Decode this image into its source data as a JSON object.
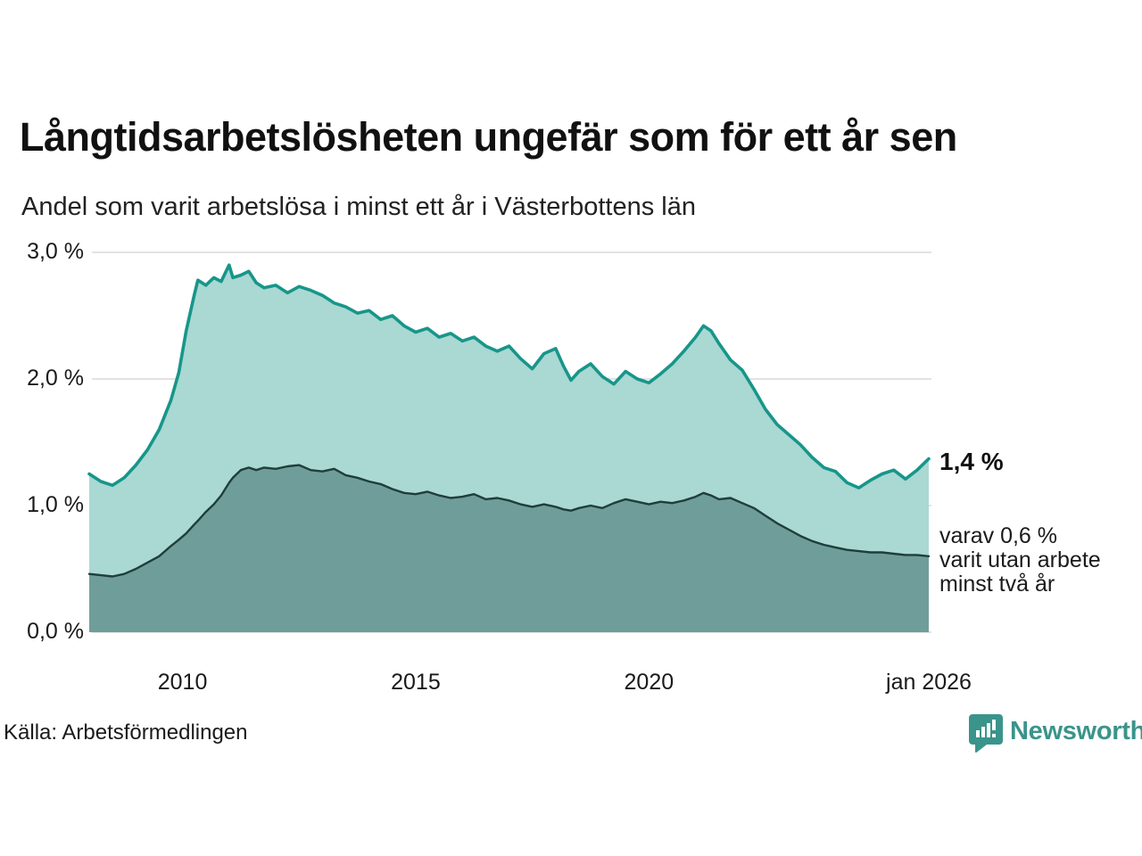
{
  "header": {
    "title": "Långtidsarbetslösheten ungefär som för ett år sen",
    "subtitle": "Andel som varit arbetslösa i minst ett år i Västerbottens län"
  },
  "annotations": {
    "latest_total": "1,4 %",
    "secondary_lines": [
      "varav 0,6 %",
      "varit utan arbete",
      "minst två år"
    ]
  },
  "footer": {
    "source": "Källa: Arbetsförmedlingen",
    "brand": "Newsworthy",
    "brand_icon": "newsworthy-bubble-chart-icon"
  },
  "colors": {
    "one_year_line": "#17968a",
    "one_year_fill": "#aad8d2",
    "two_year_line": "#1e3e3c",
    "two_year_fill": "#6f9e9a",
    "gridline": "#d8d8d8",
    "text": "#1a1a1a",
    "brand_teal": "#3a948b"
  },
  "chart_data": {
    "type": "area",
    "title": "Långtidsarbetslösheten ungefär som för ett år sen",
    "subtitle": "Andel som varit arbetslösa i minst ett år i Västerbottens län",
    "xlabel": "",
    "ylabel": "",
    "xlim": [
      2008.0,
      2026.0
    ],
    "ylim": [
      0.0,
      3.0
    ],
    "grid": "horizontal",
    "unit": "%",
    "x": [
      2008.0,
      2008.25,
      2008.5,
      2008.75,
      2009.0,
      2009.25,
      2009.5,
      2009.75,
      2009.92,
      2010.08,
      2010.25,
      2010.33,
      2010.5,
      2010.67,
      2010.83,
      2011.0,
      2011.08,
      2011.25,
      2011.42,
      2011.58,
      2011.75,
      2012.0,
      2012.25,
      2012.5,
      2012.75,
      2013.0,
      2013.25,
      2013.5,
      2013.75,
      2014.0,
      2014.25,
      2014.5,
      2014.75,
      2015.0,
      2015.25,
      2015.5,
      2015.75,
      2016.0,
      2016.25,
      2016.5,
      2016.75,
      2017.0,
      2017.25,
      2017.5,
      2017.75,
      2018.0,
      2018.17,
      2018.33,
      2018.5,
      2018.75,
      2019.0,
      2019.25,
      2019.5,
      2019.75,
      2020.0,
      2020.25,
      2020.5,
      2020.75,
      2021.0,
      2021.17,
      2021.33,
      2021.5,
      2021.75,
      2022.0,
      2022.25,
      2022.5,
      2022.75,
      2023.0,
      2023.25,
      2023.5,
      2023.75,
      2024.0,
      2024.25,
      2024.5,
      2024.75,
      2025.0,
      2025.25,
      2025.5,
      2025.75,
      2026.0
    ],
    "series": [
      {
        "name": "Andel som varit arbetslösa i minst ett år",
        "latest_label": "1,4 %",
        "line_color": "#17968a",
        "fill_color": "#aad8d2",
        "line_width": 3.6,
        "values": [
          1.25,
          1.19,
          1.16,
          1.22,
          1.32,
          1.44,
          1.6,
          1.83,
          2.05,
          2.38,
          2.66,
          2.78,
          2.74,
          2.8,
          2.77,
          2.9,
          2.8,
          2.82,
          2.85,
          2.76,
          2.72,
          2.74,
          2.68,
          2.73,
          2.7,
          2.66,
          2.6,
          2.57,
          2.52,
          2.54,
          2.47,
          2.5,
          2.42,
          2.37,
          2.4,
          2.33,
          2.36,
          2.3,
          2.33,
          2.26,
          2.22,
          2.26,
          2.16,
          2.08,
          2.2,
          2.24,
          2.1,
          1.99,
          2.06,
          2.12,
          2.02,
          1.96,
          2.06,
          2.0,
          1.97,
          2.04,
          2.12,
          2.22,
          2.33,
          2.42,
          2.38,
          2.28,
          2.15,
          2.07,
          1.92,
          1.76,
          1.64,
          1.56,
          1.48,
          1.38,
          1.3,
          1.27,
          1.18,
          1.14,
          1.2,
          1.25,
          1.28,
          1.21,
          1.28,
          1.37
        ]
      },
      {
        "name": "varav varit utan arbete minst två år",
        "latest_label": "0,6 %",
        "line_color": "#1e3e3c",
        "fill_color": "#6f9e9a",
        "line_width": 2.4,
        "values": [
          0.46,
          0.45,
          0.44,
          0.46,
          0.5,
          0.55,
          0.6,
          0.68,
          0.73,
          0.78,
          0.85,
          0.88,
          0.95,
          1.01,
          1.08,
          1.18,
          1.22,
          1.28,
          1.3,
          1.28,
          1.3,
          1.29,
          1.31,
          1.32,
          1.28,
          1.27,
          1.29,
          1.24,
          1.22,
          1.19,
          1.17,
          1.13,
          1.1,
          1.09,
          1.11,
          1.08,
          1.06,
          1.07,
          1.09,
          1.05,
          1.06,
          1.04,
          1.01,
          0.99,
          1.01,
          0.99,
          0.97,
          0.96,
          0.98,
          1.0,
          0.98,
          1.02,
          1.05,
          1.03,
          1.01,
          1.03,
          1.02,
          1.04,
          1.07,
          1.1,
          1.08,
          1.05,
          1.06,
          1.02,
          0.98,
          0.92,
          0.86,
          0.81,
          0.76,
          0.72,
          0.69,
          0.67,
          0.65,
          0.64,
          0.63,
          0.63,
          0.62,
          0.61,
          0.61,
          0.6
        ]
      }
    ],
    "xticks": [
      {
        "value": 2010,
        "label": "2010"
      },
      {
        "value": 2015,
        "label": "2015"
      },
      {
        "value": 2020,
        "label": "2020"
      },
      {
        "value": 2026,
        "label": "jan 2026"
      }
    ],
    "yticks": [
      {
        "value": 0.0,
        "label": "0,0 %"
      },
      {
        "value": 1.0,
        "label": "1,0 %"
      },
      {
        "value": 2.0,
        "label": "2,0 %"
      },
      {
        "value": 3.0,
        "label": "3,0 %"
      }
    ],
    "legend_position": "none"
  }
}
